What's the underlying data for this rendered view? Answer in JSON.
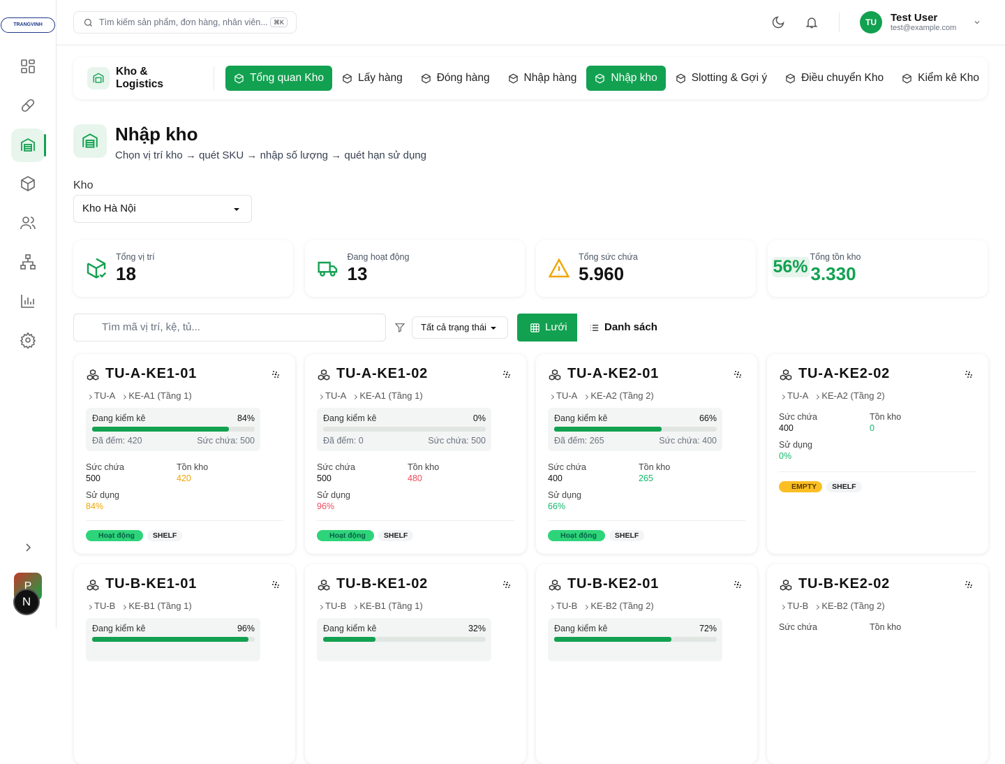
{
  "sidebar": {
    "logo": "TRANGVINH",
    "avatar": "P",
    "badge": "N"
  },
  "header": {
    "search_placeholder": "Tìm kiếm sản phẩm, đơn hàng, nhân viên...",
    "shortcut": "⌘K",
    "user": {
      "initials": "TU",
      "name": "Test User",
      "email": "test@example.com"
    }
  },
  "nav": {
    "section": "Kho & Logistics",
    "tabs": [
      {
        "label": "Tổng quan Kho",
        "active": true
      },
      {
        "label": "Lấy hàng"
      },
      {
        "label": "Đóng hàng"
      },
      {
        "label": "Nhập hàng"
      },
      {
        "label": "Nhập kho",
        "active": true
      },
      {
        "label": "Slotting & Gợi ý"
      },
      {
        "label": "Điều chuyển Kho"
      },
      {
        "label": "Kiểm kê Kho"
      }
    ]
  },
  "page": {
    "title": "Nhập kho",
    "subtitle": "Chọn vị trí kho → quét SKU → nhập số lượng → quét hạn sử dụng"
  },
  "warehouse": {
    "label": "Kho",
    "selected": "Kho Hà Nội"
  },
  "stats": [
    {
      "label": "Tổng vị trí",
      "value": "18"
    },
    {
      "label": "Đang hoạt động",
      "value": "13"
    },
    {
      "label": "Tổng sức chứa",
      "value": "5.960"
    },
    {
      "label": "Tổng tồn kho",
      "value": "3.330",
      "badge": "56%"
    }
  ],
  "toolbar": {
    "search_placeholder": "Tìm mã vị trí, kệ, tủ...",
    "status_filter": "Tất cả trạng thái",
    "views": [
      "Lưới",
      "Danh sách"
    ]
  },
  "cards": [
    {
      "code": "TU-A-KE1-01",
      "zone": "TU-A",
      "shelf": "KE-A1 (Tầng 1)",
      "audit": {
        "label": "Đang kiểm kê",
        "progress": {
          "value": 84,
          "label": "84%"
        },
        "counted": "Đã đếm: 420",
        "capacity": "Sức chứa: 500"
      },
      "stats": [
        {
          "label": "Sức chứa",
          "value": "500"
        },
        {
          "label": "Tồn kho",
          "value": "420",
          "tone": "warning"
        },
        {
          "label": "Sử dụng",
          "value": "84%",
          "tone": "warning"
        }
      ],
      "tags": [
        {
          "label": "Hoạt động",
          "tone": "active"
        },
        {
          "label": "SHELF"
        }
      ]
    },
    {
      "code": "TU-A-KE1-02",
      "zone": "TU-A",
      "shelf": "KE-A1 (Tầng 1)",
      "audit": {
        "label": "Đang kiểm kê",
        "progress": {
          "value": 0,
          "label": "0%"
        },
        "counted": "Đã đếm: 0",
        "capacity": "Sức chứa: 500"
      },
      "stats": [
        {
          "label": "Sức chứa",
          "value": "500"
        },
        {
          "label": "Tồn kho",
          "value": "480",
          "tone": "danger"
        },
        {
          "label": "Sử dụng",
          "value": "96%",
          "tone": "danger"
        }
      ],
      "tags": [
        {
          "label": "Hoạt động",
          "tone": "active"
        },
        {
          "label": "SHELF"
        }
      ]
    },
    {
      "code": "TU-A-KE2-01",
      "zone": "TU-A",
      "shelf": "KE-A2 (Tầng 2)",
      "audit": {
        "label": "Đang kiểm kê",
        "progress": {
          "value": 66,
          "label": "66%"
        },
        "counted": "Đã đếm: 265",
        "capacity": "Sức chứa: 400"
      },
      "stats": [
        {
          "label": "Sức chứa",
          "value": "400"
        },
        {
          "label": "Tồn kho",
          "value": "265",
          "tone": "success"
        },
        {
          "label": "Sử dụng",
          "value": "66%",
          "tone": "success"
        }
      ],
      "tags": [
        {
          "label": "Hoạt động",
          "tone": "active"
        },
        {
          "label": "SHELF"
        }
      ]
    },
    {
      "code": "TU-A-KE2-02",
      "zone": "TU-A",
      "shelf": "KE-A2 (Tầng 2)",
      "stats": [
        {
          "label": "Sức chứa",
          "value": "400"
        },
        {
          "label": "Tồn kho",
          "value": "0",
          "tone": "success"
        },
        {
          "label": "Sử dụng",
          "value": "0%",
          "tone": "success"
        }
      ],
      "tags": [
        {
          "label": "EMPTY",
          "tone": "empty"
        },
        {
          "label": "SHELF"
        }
      ]
    },
    {
      "code": "TU-B-KE1-01",
      "zone": "TU-B",
      "shelf": "KE-B1 (Tầng 1)",
      "audit": {
        "label": "Đang kiểm kê",
        "progress": {
          "value": 96,
          "label": "96%"
        }
      }
    },
    {
      "code": "TU-B-KE1-02",
      "zone": "TU-B",
      "shelf": "KE-B1 (Tầng 1)",
      "audit": {
        "label": "Đang kiểm kê",
        "progress": {
          "value": 32,
          "label": "32%"
        }
      }
    },
    {
      "code": "TU-B-KE2-01",
      "zone": "TU-B",
      "shelf": "KE-B2 (Tầng 2)",
      "audit": {
        "label": "Đang kiểm kê",
        "progress": {
          "value": 72,
          "label": "72%"
        }
      }
    },
    {
      "code": "TU-B-KE2-02",
      "zone": "TU-B",
      "shelf": "KE-B2 (Tầng 2)",
      "stats": [
        {
          "label": "Sức chứa"
        },
        {
          "label": "Tồn kho"
        }
      ]
    }
  ]
}
